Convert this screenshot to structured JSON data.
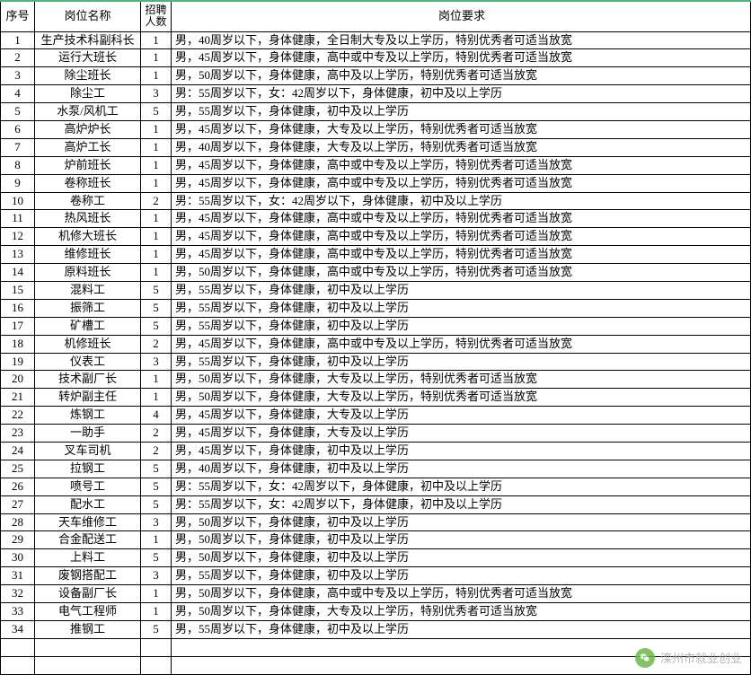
{
  "table": {
    "headers": {
      "seq": "序号",
      "name": "岗位名称",
      "count_line1": "招聘",
      "count_line2": "人数",
      "req": "岗位要求"
    },
    "rows": [
      {
        "seq": "1",
        "name": "生产技术科副科长",
        "count": "1",
        "req": "男，40周岁以下，身体健康，全日制大专及以上学历，特别优秀者可适当放宽"
      },
      {
        "seq": "2",
        "name": "运行大班长",
        "count": "1",
        "req": "男，45周岁以下，身体健康，高中或中专及以上学历，特别优秀者可适当放宽"
      },
      {
        "seq": "3",
        "name": "除尘班长",
        "count": "1",
        "req": "男，50周岁以下，身体健康，高中及以上学历，特别优秀者可适当放宽"
      },
      {
        "seq": "4",
        "name": "除尘工",
        "count": "3",
        "req": "男：55周岁以下，女：42周岁以下，身体健康，初中及以上学历"
      },
      {
        "seq": "5",
        "name": "水泵/风机工",
        "count": "5",
        "req": "男，55周岁以下，身体健康，初中及以上学历"
      },
      {
        "seq": "6",
        "name": "高炉炉长",
        "count": "1",
        "req": "男，45周岁以下，身体健康，大专及以上学历，特别优秀者可适当放宽"
      },
      {
        "seq": "7",
        "name": "高炉工长",
        "count": "1",
        "req": "男，40周岁以下，身体健康，大专及以上学历，特别优秀者可适当放宽"
      },
      {
        "seq": "8",
        "name": "炉前班长",
        "count": "1",
        "req": "男，45周岁以下，身体健康，高中或中专及以上学历，特别优秀者可适当放宽"
      },
      {
        "seq": "9",
        "name": "卷称班长",
        "count": "1",
        "req": "男，45周岁以下，身体健康，高中或中专及以上学历，特别优秀者可适当放宽"
      },
      {
        "seq": "10",
        "name": "卷称工",
        "count": "2",
        "req": "男：55周岁以下，女：42周岁以下，身体健康，初中及以上学历"
      },
      {
        "seq": "11",
        "name": "热风班长",
        "count": "1",
        "req": "男，45周岁以下，身体健康，高中或中专及以上学历，特别优秀者可适当放宽"
      },
      {
        "seq": "12",
        "name": "机修大班长",
        "count": "1",
        "req": "男，45周岁以下，身体健康，高中或中专及以上学历，特别优秀者可适当放宽"
      },
      {
        "seq": "13",
        "name": "维修班长",
        "count": "1",
        "req": "男，45周岁以下，身体健康，高中或中专及以上学历，特别优秀者可适当放宽"
      },
      {
        "seq": "14",
        "name": "原料班长",
        "count": "1",
        "req": "男，50周岁以下，身体健康，高中或中专及以上学历，特别优秀者可适当放宽"
      },
      {
        "seq": "15",
        "name": "混料工",
        "count": "5",
        "req": "男，55周岁以下，身体健康，初中及以上学历"
      },
      {
        "seq": "16",
        "name": "振筛工",
        "count": "5",
        "req": "男，55周岁以下，身体健康，初中及以上学历"
      },
      {
        "seq": "17",
        "name": "矿槽工",
        "count": "5",
        "req": "男，55周岁以下，身体健康，初中及以上学历"
      },
      {
        "seq": "18",
        "name": "机修班长",
        "count": "2",
        "req": "男，45周岁以下，身体健康，高中或中专及以上学历，特别优秀者可适当放宽"
      },
      {
        "seq": "19",
        "name": "仪表工",
        "count": "3",
        "req": "男，55周岁以下，身体健康，初中及以上学历"
      },
      {
        "seq": "20",
        "name": "技术副厂长",
        "count": "1",
        "req": "男，50周岁以下，身体健康，大专及以上学历，特别优秀者可适当放宽"
      },
      {
        "seq": "21",
        "name": "转炉副主任",
        "count": "1",
        "req": "男，50周岁以下，身体健康，大专及以上学历，特别优秀者可适当放宽"
      },
      {
        "seq": "22",
        "name": "炼钢工",
        "count": "4",
        "req": "男，45周岁以下，身体健康，大专及以上学历"
      },
      {
        "seq": "23",
        "name": "一助手",
        "count": "2",
        "req": "男，45周岁以下，身体健康，大专及以上学历"
      },
      {
        "seq": "24",
        "name": "叉车司机",
        "count": "2",
        "req": "男，45周岁以下，身体健康，初中及以上学历"
      },
      {
        "seq": "25",
        "name": "拉钢工",
        "count": "5",
        "req": "男，40周岁以下，身体健康，初中及以上学历"
      },
      {
        "seq": "26",
        "name": "喷号工",
        "count": "5",
        "req": "男：55周岁以下，女：42周岁以下，身体健康，初中及以上学历"
      },
      {
        "seq": "27",
        "name": "配水工",
        "count": "5",
        "req": "男：55周岁以下，女：42周岁以下，身体健康，初中及以上学历"
      },
      {
        "seq": "28",
        "name": "天车维修工",
        "count": "3",
        "req": "男，50周岁以下，身体健康，初中及以上学历"
      },
      {
        "seq": "29",
        "name": "合金配送工",
        "count": "1",
        "req": "男，50周岁以下，身体健康，初中及以上学历"
      },
      {
        "seq": "30",
        "name": "上料工",
        "count": "5",
        "req": "男，50周岁以下，身体健康，初中及以上学历"
      },
      {
        "seq": "31",
        "name": "废钢搭配工",
        "count": "3",
        "req": "男，55周岁以下，身体健康，初中及以上学历"
      },
      {
        "seq": "32",
        "name": "设备副厂长",
        "count": "1",
        "req": "男，50周岁以下，身体健康，高中或中专及以上学历，特别优秀者可适当放宽"
      },
      {
        "seq": "33",
        "name": "电气工程师",
        "count": "1",
        "req": "男，50周岁以下，身体健康，大专及以上学历，特别优秀者可适当放宽"
      },
      {
        "seq": "34",
        "name": "推钢工",
        "count": "5",
        "req": "男，55周岁以下，身体健康，初中及以上学历"
      }
    ],
    "border_color": "#000000",
    "header_top_border": "#4eb872",
    "font_size": 13,
    "background_color": "#ffffff"
  },
  "watermark": {
    "text": "滦州市就业创业",
    "icon_color": "#6fb84c",
    "text_color": "#a8a8a8"
  }
}
